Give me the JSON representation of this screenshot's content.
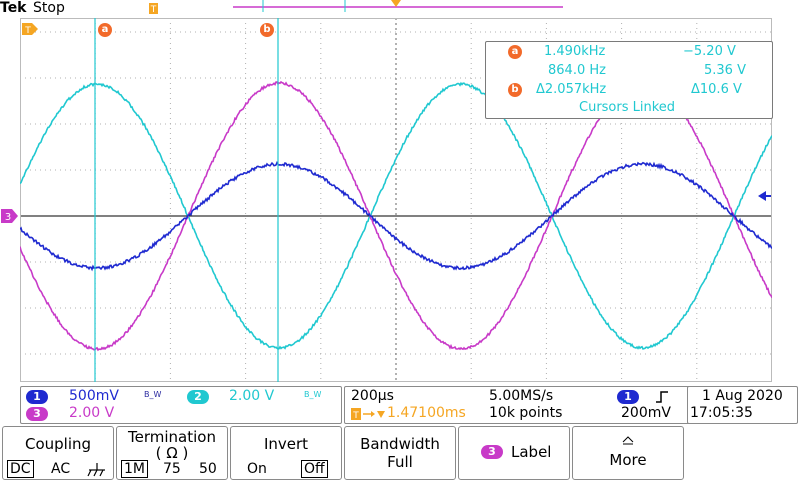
{
  "header": {
    "brand": "Tek",
    "status": "Stop"
  },
  "cursors": {
    "a_label": "a",
    "b_label": "b"
  },
  "channel3_marker": "3",
  "readout": {
    "a_freq": "1.490kHz",
    "a_volt": "−5.20 V",
    "b_freq": "864.0 Hz",
    "b_volt": "5.36 V",
    "delta_freq": "Δ2.057kHz",
    "delta_volt": "Δ10.6 V",
    "linked": "Cursors Linked"
  },
  "channels": {
    "ch1": {
      "num": "1",
      "scale": "500mV",
      "bw": "B_W",
      "color": "#1f2ad0"
    },
    "ch2": {
      "num": "2",
      "scale": "2.00 V",
      "bw": "B_W",
      "color": "#20c8d0"
    },
    "ch3": {
      "num": "3",
      "scale": "2.00 V",
      "color": "#c83ac8"
    }
  },
  "timebase": {
    "horizontal": "200µs",
    "sample_rate": "5.00MS/s",
    "trigger_pos": "1.47100ms",
    "record": "10k points"
  },
  "trigger": {
    "source": "1",
    "level": "200mV",
    "slope": "rising"
  },
  "datetime": {
    "date": "1 Aug 2020",
    "time": "17:05:35"
  },
  "menu": {
    "coupling": {
      "title": "Coupling",
      "dc": "DC",
      "ac": "AC"
    },
    "termination": {
      "title": "Termination",
      "sub": "( Ω )",
      "opt1": "1M",
      "opt2": "75",
      "opt3": "50"
    },
    "invert": {
      "title": "Invert",
      "on": "On",
      "off": "Off"
    },
    "bandwidth": {
      "title": "Bandwidth",
      "value": "Full"
    },
    "label": {
      "chip": "3",
      "title": "Label"
    },
    "more": {
      "title": "More"
    }
  }
}
